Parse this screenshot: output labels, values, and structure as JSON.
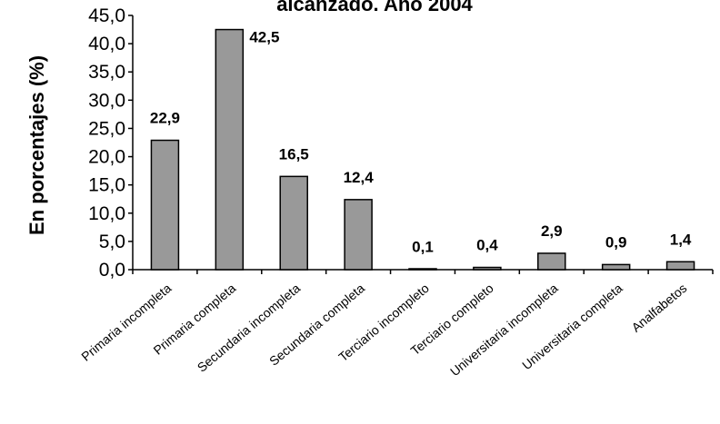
{
  "chart_data": {
    "type": "bar",
    "title": "alcanzado. Año 2004",
    "xlabel": "",
    "ylabel": "En porcentajes (%)",
    "ylim": [
      0,
      45
    ],
    "ytick_step": 5,
    "yticks": [
      "0,0",
      "5,0",
      "10,0",
      "15,0",
      "20,0",
      "25,0",
      "30,0",
      "35,0",
      "40,0",
      "45,0"
    ],
    "grid": false,
    "bar_color": "#999999",
    "categories": [
      "Primaria incompleta",
      "Primaria completa",
      "Secundaria incompleta",
      "Secundaria completa",
      "Terciario incompleto",
      "Terciario completo",
      "Universitaria incompleta",
      "Universitaria completa",
      "Analfabetos"
    ],
    "values": [
      22.9,
      42.5,
      16.5,
      12.4,
      0.1,
      0.4,
      2.9,
      0.9,
      1.4
    ],
    "data_labels": [
      "22,9",
      "42,5",
      "16,5",
      "12,4",
      "0,1",
      "0,4",
      "2,9",
      "0,9",
      "1,4"
    ]
  }
}
